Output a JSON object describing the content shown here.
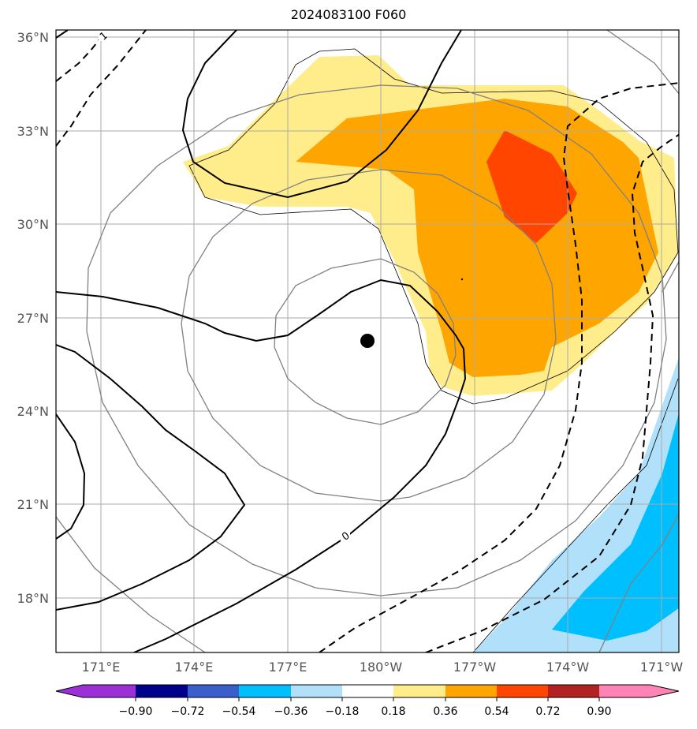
{
  "title": "2024083100 F060",
  "map": {
    "lat_labels": [
      "36°N",
      "33°N",
      "30°N",
      "27°N",
      "24°N",
      "21°N",
      "18°N"
    ],
    "lon_labels": [
      "171°E",
      "174°E",
      "177°E",
      "180°W",
      "177°W",
      "174°W",
      "171°W"
    ],
    "storm_center_label": "",
    "contour_labels": [
      "1",
      "0"
    ]
  },
  "colorbar": {
    "labels": [
      "−0.90",
      "−0.72",
      "−0.54",
      "−0.36",
      "−0.18",
      "0.18",
      "0.36",
      "0.54",
      "0.72",
      "0.90"
    ],
    "colors": [
      "#9b30d9",
      "#00008b",
      "#3a5fcd",
      "#00bfff",
      "#b0e0fa",
      "#ffffff",
      "#ffec8b",
      "#ffa500",
      "#ff4500",
      "#b22222",
      "#ff83b4"
    ]
  },
  "fill_colors": {
    "light_yellow": "#ffec8b",
    "orange": "#ffa500",
    "red_orange": "#ff4500",
    "light_blue": "#b0e0fa",
    "deep_sky_blue": "#00bfff"
  }
}
